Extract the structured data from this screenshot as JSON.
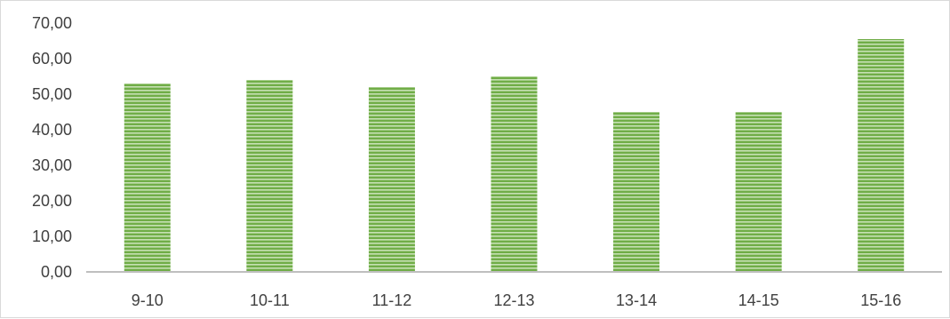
{
  "chart_data": {
    "type": "bar",
    "categories": [
      "9-10",
      "10-11",
      "11-12",
      "12-13",
      "13-14",
      "14-15",
      "15-16"
    ],
    "values": [
      53,
      54,
      52,
      55,
      45,
      45,
      65.5
    ],
    "y_ticks": [
      "0,00",
      "10,00",
      "20,00",
      "30,00",
      "40,00",
      "50,00",
      "60,00",
      "70,00"
    ],
    "ylim": [
      0,
      70
    ],
    "y_tick_step": 10,
    "grid": false,
    "legend": "none",
    "bar_fill_color": "#70ad47",
    "bar_stripe_color": "#c6e0b4",
    "axis_color": "#bfbfbf",
    "label_color": "#404040"
  }
}
